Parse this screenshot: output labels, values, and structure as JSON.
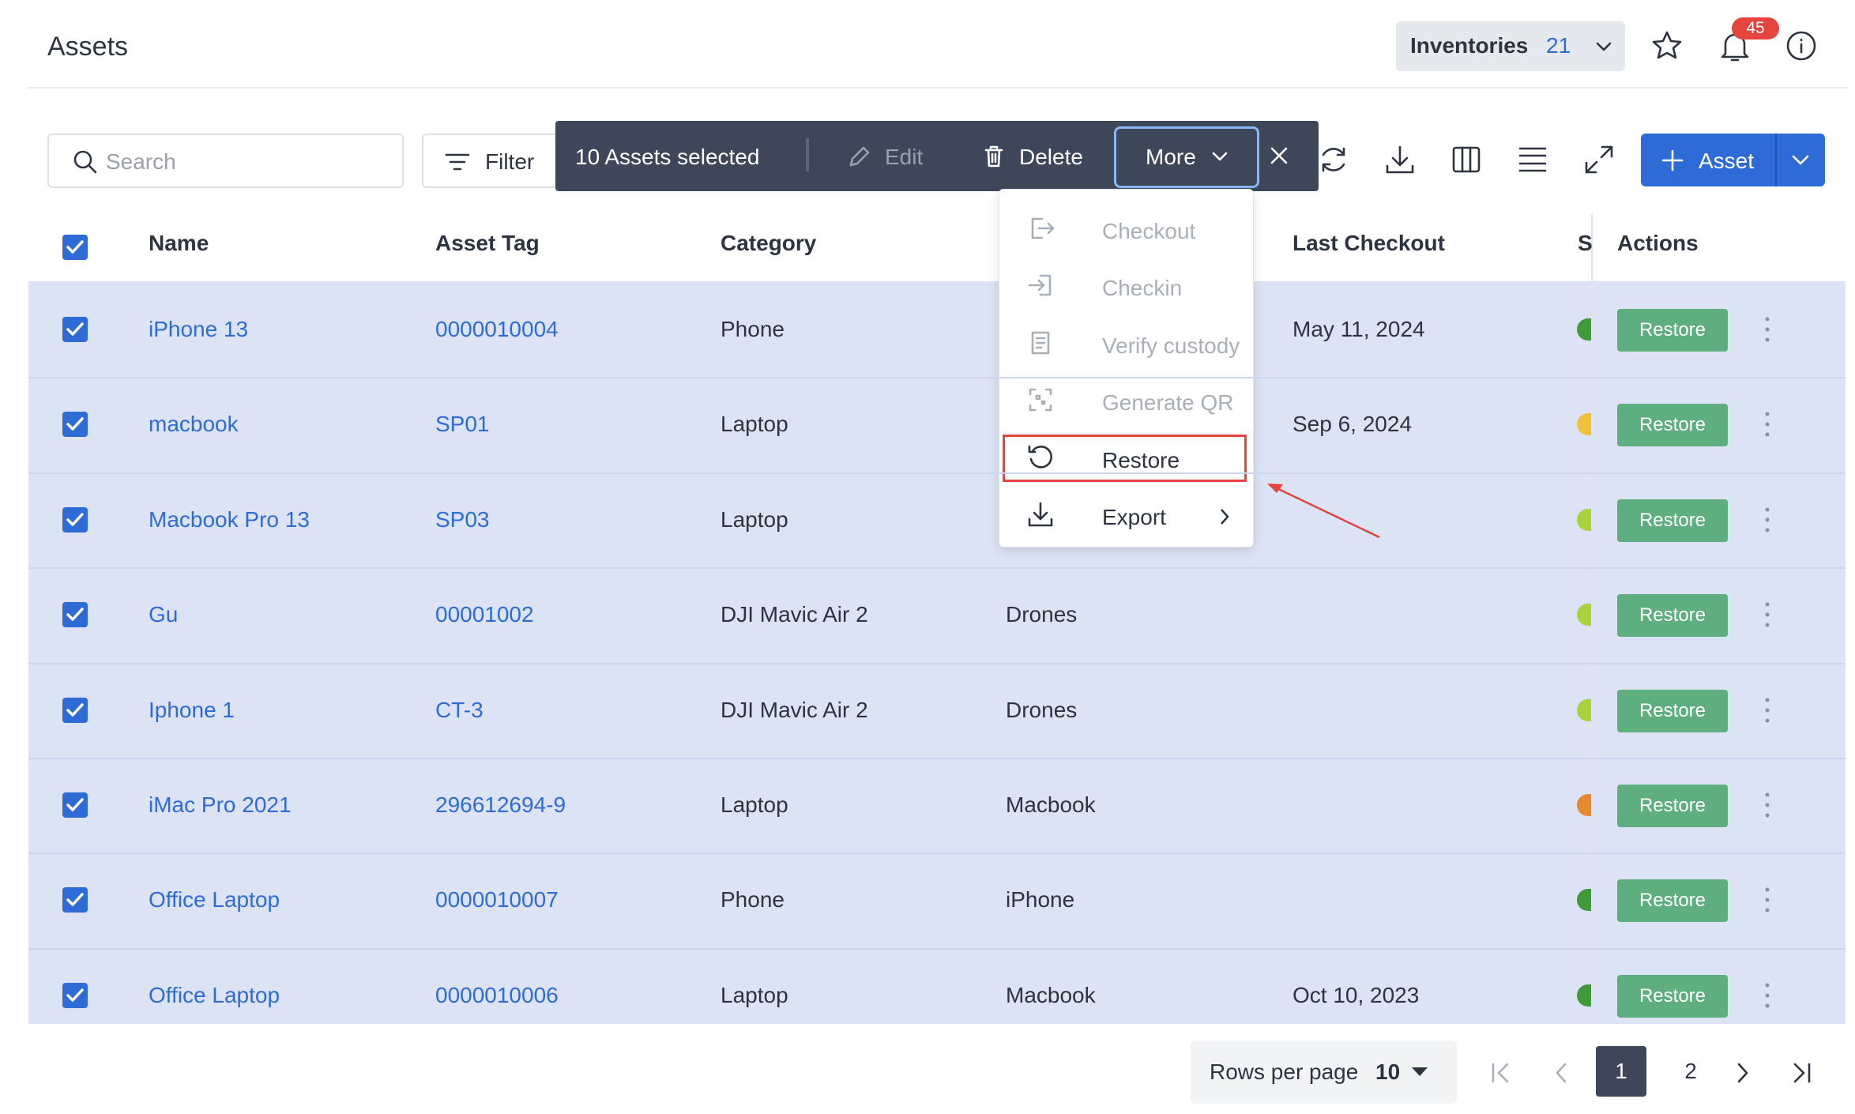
{
  "header": {
    "title": "Assets",
    "inventories_label": "Inventories",
    "inventories_count": 21,
    "notifications": 45
  },
  "toolbar": {
    "search_placeholder": "Search",
    "filter": "Filter",
    "selection": "10 Assets selected",
    "edit": "Edit",
    "delete": "Delete",
    "more": "More",
    "add_asset": "Asset"
  },
  "menu": {
    "items": [
      {
        "label": "Checkout",
        "enabled": false
      },
      {
        "label": "Checkin",
        "enabled": false
      },
      {
        "label": "Verify custody",
        "enabled": false
      },
      {
        "label": "Generate QR",
        "enabled": false
      },
      {
        "label": "Restore",
        "enabled": true
      },
      {
        "label": "Export",
        "enabled": true
      }
    ]
  },
  "table": {
    "headers": [
      "Name",
      "Asset Tag",
      "Category",
      "Last Checkout",
      "S",
      "Actions"
    ],
    "row_action": "Restore",
    "rows": [
      {
        "name": "iPhone 13",
        "tag": "0000010004",
        "category": "Phone",
        "model": null,
        "last_checkout": "May 11, 2024",
        "status_color": "#3f9a3a"
      },
      {
        "name": "macbook",
        "tag": "SP01",
        "category": "Laptop",
        "model": null,
        "last_checkout": "Sep 6, 2024",
        "status_color": "#f2c13b"
      },
      {
        "name": "Macbook Pro 13",
        "tag": "SP03",
        "category": "Laptop",
        "model": null,
        "last_checkout": null,
        "status_color": "#a8d43a"
      },
      {
        "name": "Gu",
        "tag": "00001002",
        "category": "DJI Mavic Air 2",
        "model": "Drones",
        "last_checkout": null,
        "status_color": "#a8d43a"
      },
      {
        "name": "Iphone 1",
        "tag": "CT-3",
        "category": "DJI Mavic Air 2",
        "model": "Drones",
        "last_checkout": null,
        "status_color": "#a8d43a"
      },
      {
        "name": "iMac Pro 2021",
        "tag": "296612694-9",
        "category": "Laptop",
        "model": "Macbook",
        "last_checkout": null,
        "status_color": "#e8892f"
      },
      {
        "name": "Office Laptop",
        "tag": "0000010007",
        "category": "Phone",
        "model": "iPhone",
        "last_checkout": null,
        "status_color": "#3f9a3a"
      },
      {
        "name": "Office Laptop",
        "tag": "0000010006",
        "category": "Laptop",
        "model": "Macbook",
        "last_checkout": "Oct 10, 2023",
        "status_color": "#3f9a3a"
      }
    ]
  },
  "pagination": {
    "rows_per_page_label": "Rows per page",
    "rows_per_page": 10,
    "pages": [
      1,
      2
    ],
    "current": 1
  }
}
